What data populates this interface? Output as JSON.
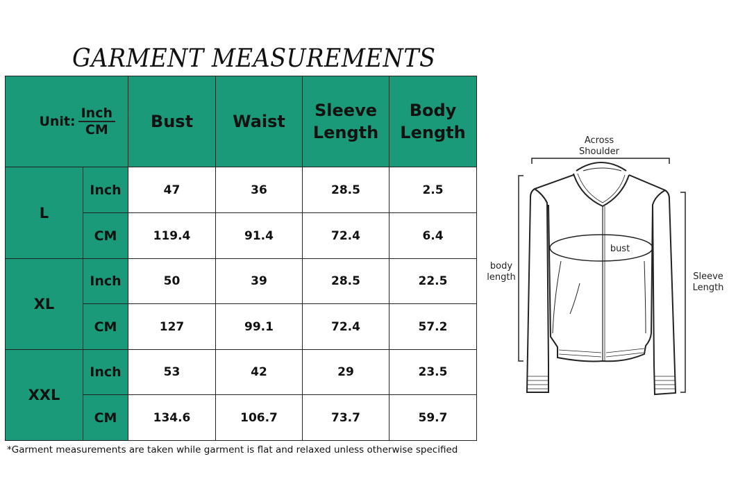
{
  "title": "GARMENT MEASUREMENTS",
  "table": {
    "unit_label": "Unit:",
    "unit_top": "Inch",
    "unit_bottom": "CM",
    "columns": [
      "Bust",
      "Waist",
      "Sleeve Length",
      "Body Length"
    ],
    "accent_color": "#1a9a78",
    "sizes": [
      {
        "size": "L",
        "rows": [
          {
            "unit": "Inch",
            "values": [
              "47",
              "36",
              "28.5",
              "2.5"
            ]
          },
          {
            "unit": "CM",
            "values": [
              "119.4",
              "91.4",
              "72.4",
              "6.4"
            ]
          }
        ]
      },
      {
        "size": "XL",
        "rows": [
          {
            "unit": "Inch",
            "values": [
              "50",
              "39",
              "28.5",
              "22.5"
            ]
          },
          {
            "unit": "CM",
            "values": [
              "127",
              "99.1",
              "72.4",
              "57.2"
            ]
          }
        ]
      },
      {
        "size": "XXL",
        "rows": [
          {
            "unit": "Inch",
            "values": [
              "53",
              "42",
              "29",
              "23.5"
            ]
          },
          {
            "unit": "CM",
            "values": [
              "134.6",
              "106.7",
              "73.7",
              "59.7"
            ]
          }
        ]
      }
    ]
  },
  "footnote": "*Garment measurements are taken while garment is flat and relaxed unless otherwise specified",
  "diagram": {
    "across_shoulder": [
      "Across",
      "Shoulder"
    ],
    "bust": "bust",
    "body_length": [
      "body",
      "length"
    ],
    "sleeve_length": [
      "Sleeve",
      "Length"
    ]
  }
}
